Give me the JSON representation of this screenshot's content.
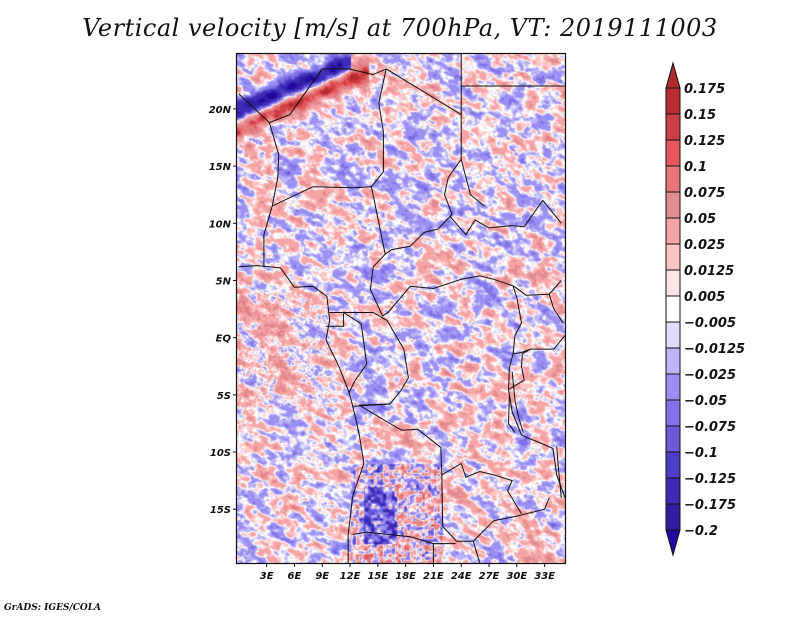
{
  "chart_data": {
    "type": "heatmap",
    "title": "Vertical velocity [m/s] at 700hPa, VT: 2019111003",
    "variable": "Vertical velocity",
    "units": "m/s",
    "level": "700hPa",
    "valid_time": "2019111003",
    "xlabel": "",
    "ylabel": "",
    "x_ticks": [
      {
        "value": 3,
        "label": "3E"
      },
      {
        "value": 6,
        "label": "6E"
      },
      {
        "value": 9,
        "label": "9E"
      },
      {
        "value": 12,
        "label": "12E"
      },
      {
        "value": 15,
        "label": "15E"
      },
      {
        "value": 18,
        "label": "18E"
      },
      {
        "value": 21,
        "label": "21E"
      },
      {
        "value": 24,
        "label": "24E"
      },
      {
        "value": 27,
        "label": "27E"
      },
      {
        "value": 30,
        "label": "30E"
      },
      {
        "value": 33,
        "label": "33E"
      }
    ],
    "y_ticks": [
      {
        "value": 20,
        "label": "20N"
      },
      {
        "value": 15,
        "label": "15N"
      },
      {
        "value": 10,
        "label": "10N"
      },
      {
        "value": 5,
        "label": "5N"
      },
      {
        "value": 0,
        "label": "EQ"
      },
      {
        "value": -5,
        "label": "5S"
      },
      {
        "value": -10,
        "label": "10S"
      },
      {
        "value": -15,
        "label": "15S"
      }
    ],
    "xlim": [
      -0.2,
      35.2
    ],
    "ylim": [
      -19.7,
      24.8
    ],
    "colorbar": {
      "placement": "right",
      "extend": "both",
      "levels": [
        0.175,
        0.15,
        0.125,
        0.1,
        0.075,
        0.05,
        0.025,
        0.0125,
        0.005,
        -0.005,
        -0.0125,
        -0.025,
        -0.05,
        -0.075,
        -0.1,
        -0.125,
        -0.175,
        -0.2
      ],
      "labels": [
        "0.175",
        "0.15",
        "0.125",
        "0.1",
        "0.075",
        "0.05",
        "0.025",
        "0.0125",
        "0.005",
        "-0.005",
        "-0.0125",
        "-0.025",
        "-0.05",
        "-0.075",
        "-0.1",
        "-0.125",
        "-0.175",
        "-0.2"
      ],
      "colors": [
        "#b02a2e",
        "#b92d31",
        "#cc3f45",
        "#e5575b",
        "#e6777a",
        "#e28c90",
        "#f5a3a5",
        "#fbc5c6",
        "#fde4e5",
        "#ffffff",
        "#dcdcfc",
        "#bcb5f8",
        "#9a8ff2",
        "#7f73e6",
        "#6a5bd6",
        "#4c3ec7",
        "#3d2bb5",
        "#2f1ea2",
        "#2407a0"
      ]
    },
    "features": [
      "country borders",
      "coastlines",
      "lakes"
    ],
    "grid": false
  },
  "footer": "GrADS: IGES/COLA"
}
